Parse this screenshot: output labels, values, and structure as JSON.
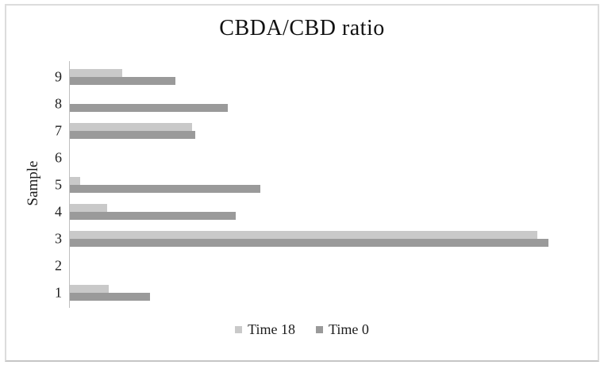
{
  "figure": {
    "title": "CBDA/CBD ratio",
    "y_axis_title": "Sample"
  },
  "legend": {
    "position": "bottom",
    "entries": [
      "Time 18",
      "Time 0"
    ]
  },
  "colors": {
    "series_time18": "#c9c9c9",
    "series_time0": "#9a9a9a",
    "axis_line": "#bfbfbf",
    "frame_border": "#dcdcdc",
    "text": "#1c1c1c"
  },
  "chart_data": {
    "type": "bar",
    "orientation": "horizontal",
    "title": "CBDA/CBD ratio",
    "xlabel": "",
    "ylabel": "Sample",
    "categories": [
      "1",
      "2",
      "3",
      "4",
      "5",
      "6",
      "7",
      "8",
      "9"
    ],
    "series": [
      {
        "name": "Time 18",
        "color": "#c9c9c9",
        "values": [
          0.082,
          0,
          0.977,
          0.078,
          0.022,
          0,
          0.256,
          0,
          0.11
        ]
      },
      {
        "name": "Time 0",
        "color": "#9a9a9a",
        "values": [
          0.168,
          0,
          1.0,
          0.347,
          0.399,
          0,
          0.262,
          0.33,
          0.22
        ]
      }
    ],
    "xlim": [
      0,
      1.09
    ],
    "grid": false,
    "x_axis_tick_labels_visible": false,
    "axis_note": "x-axis is unlabeled; values are relative estimates with longest bar (Sample 3, Time 0) = 1.0",
    "legend_position": "bottom",
    "category_order_top_to_bottom": [
      "9",
      "8",
      "7",
      "6",
      "5",
      "4",
      "3",
      "2",
      "1"
    ]
  }
}
